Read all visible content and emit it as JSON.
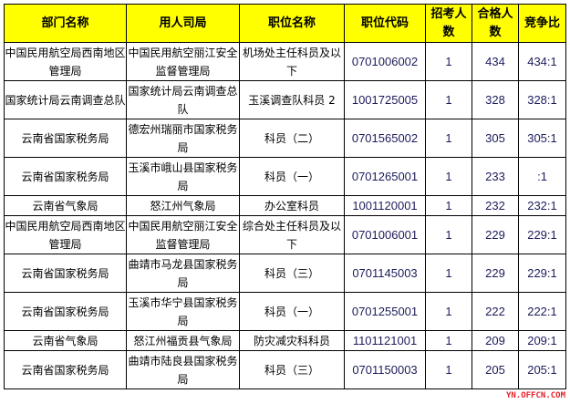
{
  "table": {
    "headers": [
      "部门名称",
      "用人司局",
      "职位名称",
      "职位代码",
      "招考人数",
      "合格人数",
      "竞争比"
    ],
    "rows": [
      [
        "中国民用航空局西南地区管理局",
        "中国民用航空丽江安全监督管理局",
        "机场处主任科员及以下",
        "0701006002",
        "1",
        "434",
        "434:1"
      ],
      [
        "国家统计局云南调查总队",
        "国家统计局云南调查总队",
        "玉溪调查队科员 2",
        "1001725005",
        "1",
        "328",
        "328:1"
      ],
      [
        "云南省国家税务局",
        "德宏州瑞丽市国家税务局",
        "科员（二）",
        "0701565002",
        "1",
        "305",
        "305:1"
      ],
      [
        "云南省国家税务局",
        "玉溪市峨山县国家税务局",
        "科员（一）",
        "0701265001",
        "1",
        "233",
        ":1"
      ],
      [
        "云南省气象局",
        "怒江州气象局",
        "办公室科员",
        "1001120001",
        "1",
        "232",
        "232:1"
      ],
      [
        "中国民用航空局西南地区管理局",
        "中国民用航空丽江安全监督管理局",
        "综合处主任科员及以下",
        "0701006001",
        "1",
        "229",
        "229:1"
      ],
      [
        "云南省国家税务局",
        "曲靖市马龙县国家税务局",
        "科员（三）",
        "0701145003",
        "1",
        "229",
        "229:1"
      ],
      [
        "云南省国家税务局",
        "玉溪市华宁县国家税务局",
        "科员（一）",
        "0701255001",
        "1",
        "222",
        "222:1"
      ],
      [
        "云南省气象局",
        "怒江州福贡县气象局",
        "防灾减灾科科员",
        "1101121001",
        "1",
        "209",
        "209:1"
      ],
      [
        "云南省国家税务局",
        "曲靖市陆良县国家税务局",
        "科员（三）",
        "0701150003",
        "1",
        "205",
        "205:1"
      ]
    ]
  },
  "watermark": "YN.OFFCN.COM",
  "colors": {
    "header_bg": "#ffff00",
    "watermark": "#e8202a"
  }
}
